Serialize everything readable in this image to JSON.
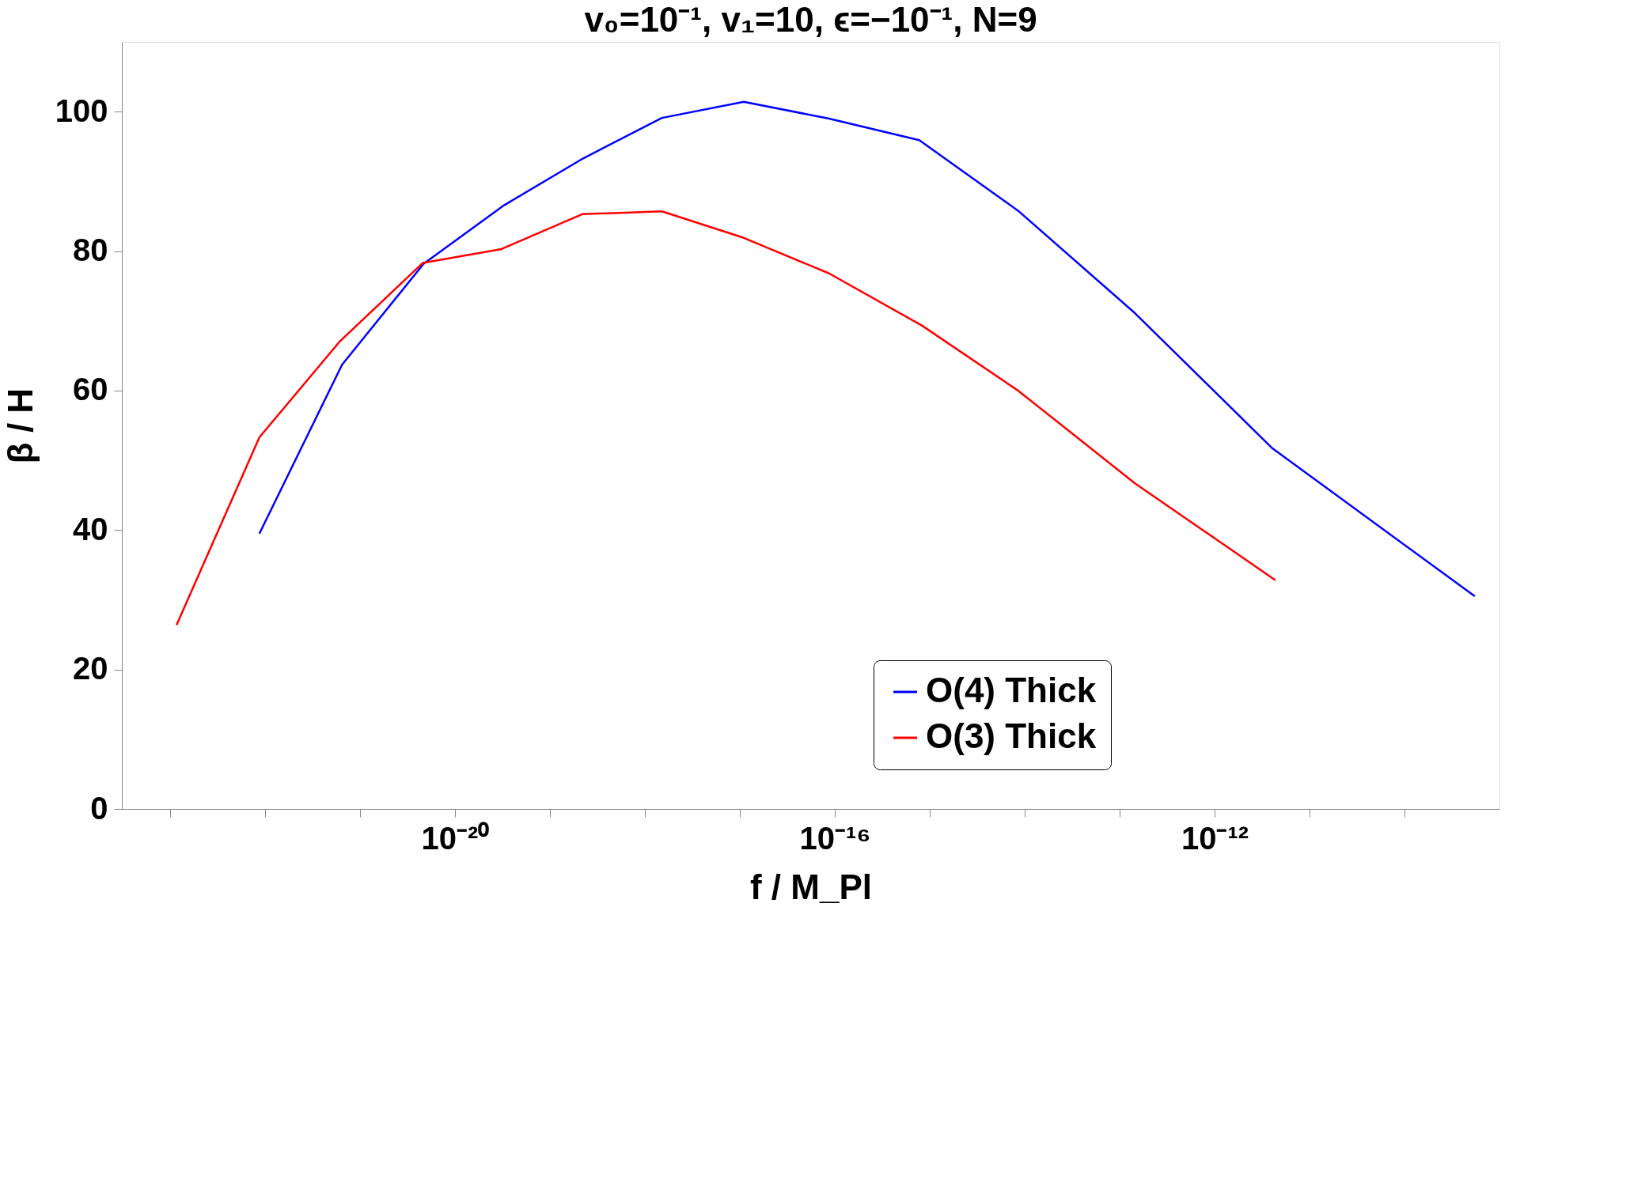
{
  "chart_data": {
    "type": "line",
    "title": "v₀=10⁻¹, v₁=10, ϵ=−10⁻¹, N=9",
    "xlabel": "f / M_Pl",
    "ylabel": "β / H",
    "log": "x",
    "xlim": [
      3.1e-24,
      1e-09
    ],
    "ylim": [
      0,
      110
    ],
    "xticks": [
      {
        "value": 1e-23,
        "label": null
      },
      {
        "value": 1e-22,
        "label": null
      },
      {
        "value": 1e-21,
        "label": null
      },
      {
        "value": 1e-20,
        "label": "10⁻²⁰"
      },
      {
        "value": 1e-19,
        "label": null
      },
      {
        "value": 1e-18,
        "label": null
      },
      {
        "value": 1e-17,
        "label": null
      },
      {
        "value": 1e-16,
        "label": "10⁻¹⁶"
      },
      {
        "value": 1e-15,
        "label": null
      },
      {
        "value": 1e-14,
        "label": null
      },
      {
        "value": 1e-13,
        "label": null
      },
      {
        "value": 1e-12,
        "label": "10⁻¹²"
      },
      {
        "value": 1e-11,
        "label": null
      },
      {
        "value": 1e-10,
        "label": null
      }
    ],
    "yticks": [
      0,
      20,
      40,
      60,
      80,
      100
    ],
    "grid": false,
    "legend": "right",
    "marker": "none",
    "line_style": "solid",
    "series": [
      {
        "name": "O(4) Thick",
        "color": "#0000ff",
        "x": [
          8.71e-23,
          6.46e-22,
          4.68e-21,
          3.31e-20,
          2.24e-19,
          1.51e-18,
          1.1e-17,
          8.71e-17,
          7.76e-16,
          8.51e-15,
          1.45e-13,
          4.07e-12,
          5.5e-10
        ],
        "values": [
          39.5,
          63.7,
          78.2,
          86.6,
          93.3,
          99.1,
          101.4,
          99.0,
          95.9,
          85.8,
          71.1,
          51.7,
          30.5
        ]
      },
      {
        "name": "O(3) Thick",
        "color": "#ff0000",
        "x": [
          1.17e-23,
          8.71e-23,
          6.17e-22,
          4.57e-21,
          3.09e-20,
          2.19e-19,
          1.51e-18,
          1.1e-17,
          8.71e-17,
          8.32e-16,
          8.51e-15,
          1.45e-13,
          4.37e-12
        ],
        "values": [
          26.4,
          53.3,
          67.1,
          78.3,
          80.3,
          85.3,
          85.7,
          81.9,
          76.8,
          69.3,
          60.0,
          46.7,
          32.8
        ]
      }
    ]
  }
}
